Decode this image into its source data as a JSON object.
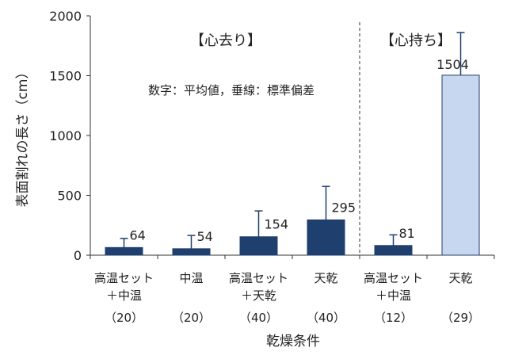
{
  "chart_data": {
    "type": "bar",
    "ylabel": "表面割れの長さ（cm）",
    "xlabel": "乾燥条件",
    "ylim": [
      0,
      2000
    ],
    "yticks": [
      0,
      500,
      1000,
      1500,
      2000
    ],
    "note": "数字：平均値，垂線：標準偏差",
    "groups": [
      {
        "label": "【心去り】",
        "bars": [
          0,
          1,
          2,
          3
        ]
      },
      {
        "label": "【心持ち】",
        "bars": [
          4,
          5
        ]
      }
    ],
    "bars": [
      {
        "line1": "高温セット",
        "line2": "＋中温",
        "n": "（20）",
        "value": 64,
        "label": "64",
        "err_top": 140,
        "color": "#1f3f6e"
      },
      {
        "line1": "中温",
        "line2": "",
        "n": "（20）",
        "value": 54,
        "label": "54",
        "err_top": 165,
        "color": "#1f3f6e"
      },
      {
        "line1": "高温セット",
        "line2": "＋天乾",
        "n": "（40）",
        "value": 154,
        "label": "154",
        "err_top": 370,
        "color": "#1f3f6e"
      },
      {
        "line1": "天乾",
        "line2": "",
        "n": "（40）",
        "value": 295,
        "label": "295",
        "err_top": 575,
        "color": "#1f3f6e"
      },
      {
        "line1": "高温セット",
        "line2": "＋中温",
        "n": "（12）",
        "value": 81,
        "label": "81",
        "err_top": 170,
        "color": "#1f3f6e"
      },
      {
        "line1": "天乾",
        "line2": "",
        "n": "（29）",
        "value": 1504,
        "label": "1504",
        "err_top": 1860,
        "color": "#c6d7ef"
      }
    ]
  }
}
